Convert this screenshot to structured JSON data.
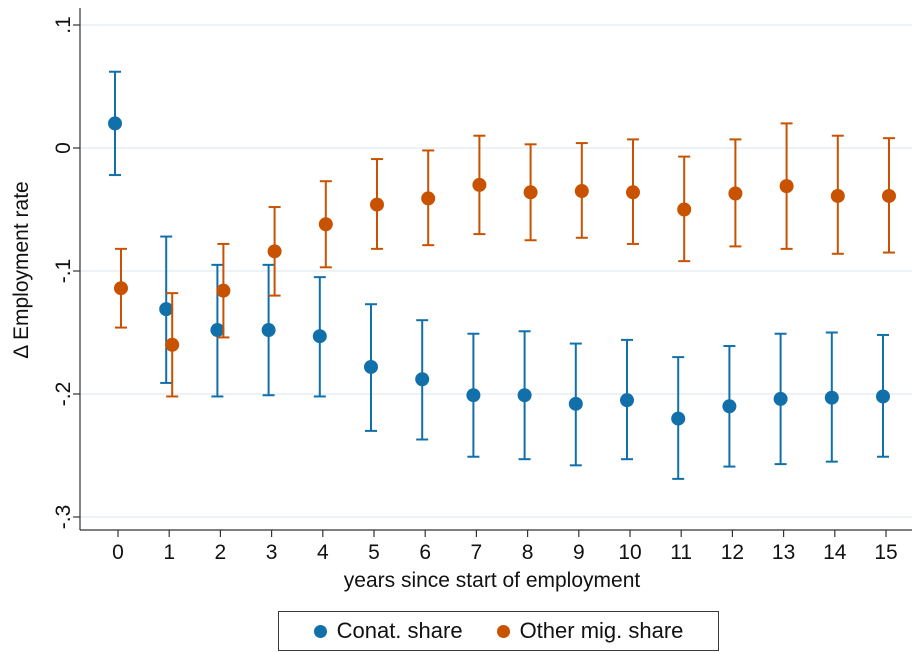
{
  "chart_data": {
    "type": "scatter",
    "xlabel": "years since start of employment",
    "ylabel": "Δ Employment rate",
    "x": [
      0,
      1,
      2,
      3,
      4,
      5,
      6,
      7,
      8,
      9,
      10,
      11,
      12,
      13,
      14,
      15
    ],
    "xticks": [
      "0",
      "1",
      "2",
      "3",
      "4",
      "5",
      "6",
      "7",
      "8",
      "9",
      "10",
      "11",
      "12",
      "13",
      "14",
      "15"
    ],
    "yticks": [
      {
        "value": 0.1,
        "label": ".1"
      },
      {
        "value": 0,
        "label": "0"
      },
      {
        "value": -0.1,
        "label": "-.1"
      },
      {
        "value": -0.2,
        "label": "-.2"
      },
      {
        "value": -0.3,
        "label": "-.3"
      }
    ],
    "ylim": [
      -0.3,
      0.1
    ],
    "grid": true,
    "legend_position": "bottom",
    "series": [
      {
        "name": "Conat. share",
        "color": "#1170aa",
        "x": [
          0,
          1,
          2,
          3,
          4,
          5,
          6,
          7,
          8,
          9,
          10,
          11,
          12,
          13,
          14,
          15
        ],
        "values": [
          0.02,
          -0.131,
          -0.148,
          -0.148,
          -0.153,
          -0.178,
          -0.188,
          -0.201,
          -0.201,
          -0.208,
          -0.205,
          -0.22,
          -0.21,
          -0.204,
          -0.203,
          -0.202
        ],
        "ci_low": [
          -0.022,
          -0.191,
          -0.202,
          -0.201,
          -0.202,
          -0.23,
          -0.237,
          -0.251,
          -0.253,
          -0.258,
          -0.253,
          -0.269,
          -0.259,
          -0.257,
          -0.255,
          -0.251
        ],
        "ci_high": [
          0.062,
          -0.072,
          -0.095,
          -0.095,
          -0.105,
          -0.127,
          -0.14,
          -0.151,
          -0.149,
          -0.159,
          -0.156,
          -0.17,
          -0.161,
          -0.151,
          -0.15,
          -0.152
        ]
      },
      {
        "name": "Other mig. share",
        "color": "#c85200",
        "x": [
          0,
          1,
          2,
          3,
          4,
          5,
          6,
          7,
          8,
          9,
          10,
          11,
          12,
          13,
          14,
          15
        ],
        "values": [
          -0.114,
          -0.16,
          -0.116,
          -0.084,
          -0.062,
          -0.046,
          -0.041,
          -0.03,
          -0.036,
          -0.035,
          -0.036,
          -0.05,
          -0.037,
          -0.031,
          -0.039,
          -0.039
        ],
        "ci_low": [
          -0.146,
          -0.202,
          -0.154,
          -0.12,
          -0.097,
          -0.082,
          -0.079,
          -0.07,
          -0.075,
          -0.073,
          -0.078,
          -0.092,
          -0.08,
          -0.082,
          -0.086,
          -0.085
        ],
        "ci_high": [
          -0.082,
          -0.118,
          -0.078,
          -0.048,
          -0.027,
          -0.009,
          -0.002,
          0.01,
          0.003,
          0.004,
          0.007,
          -0.007,
          0.007,
          0.02,
          0.01,
          0.008
        ]
      }
    ]
  }
}
